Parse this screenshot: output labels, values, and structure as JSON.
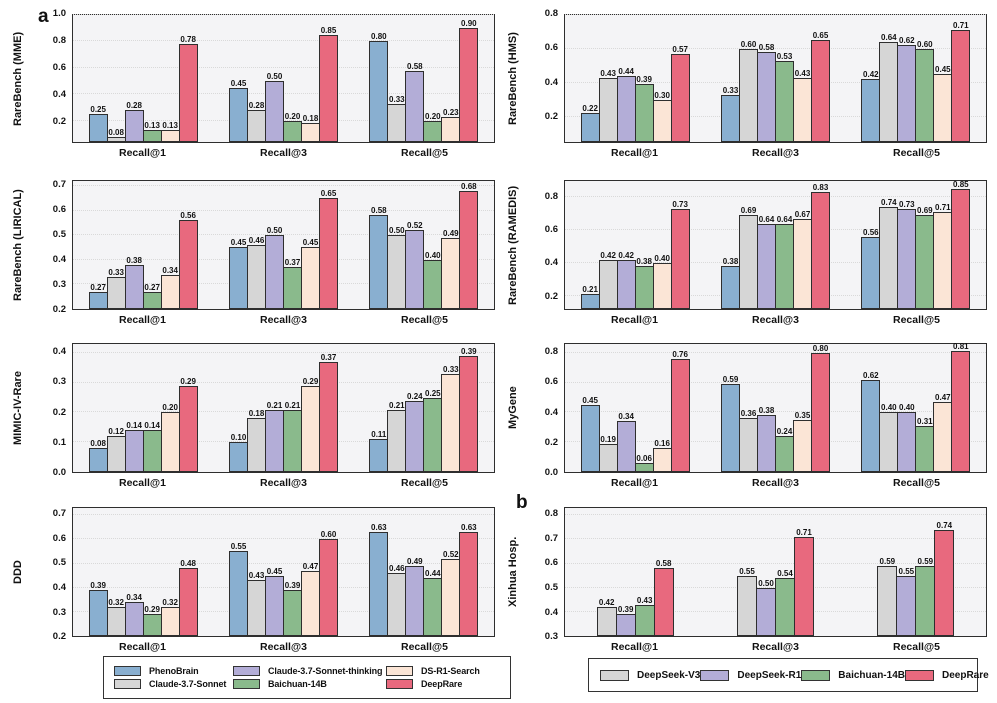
{
  "panels": {
    "a": "a",
    "b": "b"
  },
  "palettes": {
    "a": [
      "#89AFD0",
      "#D6D6D6",
      "#B3ADD7",
      "#8ABA8C",
      "#FBE5D6",
      "#E8697E"
    ],
    "b": [
      "#D6D6D6",
      "#B3ADD7",
      "#8ABA8C",
      "#E8697E"
    ]
  },
  "legend_a": {
    "items": [
      {
        "label": "PhenoBrain",
        "color": "#89AFD0"
      },
      {
        "label": "Claude-3.7-Sonnet-thinking",
        "color": "#B3ADD7"
      },
      {
        "label": "DS-R1-Search",
        "color": "#FBE5D6"
      },
      {
        "label": "Claude-3.7-Sonnet",
        "color": "#D6D6D6"
      },
      {
        "label": "Baichuan-14B",
        "color": "#8ABA8C"
      },
      {
        "label": "DeepRare",
        "color": "#E8697E"
      }
    ]
  },
  "legend_b": {
    "items": [
      {
        "label": "DeepSeek-V3",
        "color": "#D6D6D6"
      },
      {
        "label": "DeepSeek-R1",
        "color": "#B3ADD7"
      },
      {
        "label": "Baichuan-14B",
        "color": "#8ABA8C"
      },
      {
        "label": "DeepRare",
        "color": "#E8697E"
      }
    ]
  },
  "chart_data": [
    {
      "type": "bar",
      "panel": "a",
      "ylabel": "RareBench (MME)",
      "palette": "a",
      "ylim": [
        0.04,
        1.0
      ],
      "yticks": [
        "0.2",
        "0.4",
        "0.6",
        "0.8",
        "1.0"
      ],
      "grid": true,
      "categories": [
        "Recall@1",
        "Recall@3",
        "Recall@5"
      ],
      "series": [
        {
          "name": "PhenoBrain",
          "values": [
            "0.25",
            "0.45",
            "0.80"
          ]
        },
        {
          "name": "Claude-3.7-Sonnet",
          "values": [
            "0.08",
            "0.28",
            "0.33"
          ]
        },
        {
          "name": "Claude-3.7-Sonnet-thinking",
          "values": [
            "0.28",
            "0.50",
            "0.58"
          ]
        },
        {
          "name": "Baichuan-14B",
          "values": [
            "0.13",
            "0.20",
            "0.20"
          ]
        },
        {
          "name": "DS-R1-Search",
          "values": [
            "0.13",
            "0.18",
            "0.23"
          ]
        },
        {
          "name": "DeepRare",
          "values": [
            "0.78",
            "0.85",
            "0.90"
          ]
        }
      ]
    },
    {
      "type": "bar",
      "panel": "a",
      "ylabel": "RareBench (HMS)",
      "palette": "a",
      "ylim": [
        0.05,
        0.8
      ],
      "yticks": [
        "0.2",
        "0.4",
        "0.6",
        "0.8"
      ],
      "grid": true,
      "categories": [
        "Recall@1",
        "Recall@3",
        "Recall@5"
      ],
      "series": [
        {
          "name": "PhenoBrain",
          "values": [
            "0.22",
            "0.33",
            "0.42"
          ]
        },
        {
          "name": "Claude-3.7-Sonnet",
          "values": [
            "0.43",
            "0.60",
            "0.64"
          ]
        },
        {
          "name": "Claude-3.7-Sonnet-thinking",
          "values": [
            "0.44",
            "0.58",
            "0.62"
          ]
        },
        {
          "name": "Baichuan-14B",
          "values": [
            "0.39",
            "0.53",
            "0.60"
          ]
        },
        {
          "name": "DS-R1-Search",
          "values": [
            "0.30",
            "0.43",
            "0.45"
          ]
        },
        {
          "name": "DeepRare",
          "values": [
            "0.57",
            "0.65",
            "0.71"
          ]
        }
      ]
    },
    {
      "type": "bar",
      "panel": "a",
      "ylabel": "RareBench (LIRICAL)",
      "palette": "a",
      "ylim": [
        0.2,
        0.72
      ],
      "yticks": [
        "0.2",
        "0.3",
        "0.4",
        "0.5",
        "0.6",
        "0.7"
      ],
      "grid": true,
      "categories": [
        "Recall@1",
        "Recall@3",
        "Recall@5"
      ],
      "series": [
        {
          "name": "PhenoBrain",
          "values": [
            "0.27",
            "0.45",
            "0.58"
          ]
        },
        {
          "name": "Claude-3.7-Sonnet",
          "values": [
            "0.33",
            "0.46",
            "0.50"
          ]
        },
        {
          "name": "Claude-3.7-Sonnet-thinking",
          "values": [
            "0.38",
            "0.50",
            "0.52"
          ]
        },
        {
          "name": "Baichuan-14B",
          "values": [
            "0.27",
            "0.37",
            "0.40"
          ]
        },
        {
          "name": "DS-R1-Search",
          "values": [
            "0.34",
            "0.45",
            "0.49"
          ]
        },
        {
          "name": "DeepRare",
          "values": [
            "0.56",
            "0.65",
            "0.68"
          ]
        }
      ]
    },
    {
      "type": "bar",
      "panel": "a",
      "ylabel": "RareBench (RAMEDIS)",
      "palette": "a",
      "ylim": [
        0.12,
        0.9
      ],
      "yticks": [
        "0.2",
        "0.4",
        "0.6",
        "0.8"
      ],
      "grid": true,
      "categories": [
        "Recall@1",
        "Recall@3",
        "Recall@5"
      ],
      "series": [
        {
          "name": "PhenoBrain",
          "values": [
            "0.21",
            "0.38",
            "0.56"
          ]
        },
        {
          "name": "Claude-3.7-Sonnet",
          "values": [
            "0.42",
            "0.69",
            "0.74"
          ]
        },
        {
          "name": "Claude-3.7-Sonnet-thinking",
          "values": [
            "0.42",
            "0.64",
            "0.73"
          ]
        },
        {
          "name": "Baichuan-14B",
          "values": [
            "0.38",
            "0.64",
            "0.69"
          ]
        },
        {
          "name": "DS-R1-Search",
          "values": [
            "0.40",
            "0.67",
            "0.71"
          ]
        },
        {
          "name": "DeepRare",
          "values": [
            "0.73",
            "0.83",
            "0.85"
          ]
        }
      ]
    },
    {
      "type": "bar",
      "panel": "a",
      "ylabel": "MIMIC-IV-Rare",
      "palette": "a",
      "ylim": [
        0.0,
        0.43
      ],
      "yticks": [
        "0.0",
        "0.1",
        "0.2",
        "0.3",
        "0.4"
      ],
      "grid": true,
      "categories": [
        "Recall@1",
        "Recall@3",
        "Recall@5"
      ],
      "series": [
        {
          "name": "PhenoBrain",
          "values": [
            "0.08",
            "0.10",
            "0.11"
          ]
        },
        {
          "name": "Claude-3.7-Sonnet",
          "values": [
            "0.12",
            "0.18",
            "0.21"
          ]
        },
        {
          "name": "Claude-3.7-Sonnet-thinking",
          "values": [
            "0.14",
            "0.21",
            "0.24"
          ]
        },
        {
          "name": "Baichuan-14B",
          "values": [
            "0.14",
            "0.21",
            "0.25"
          ]
        },
        {
          "name": "DS-R1-Search",
          "values": [
            "0.20",
            "0.29",
            "0.33"
          ]
        },
        {
          "name": "DeepRare",
          "values": [
            "0.29",
            "0.37",
            "0.39"
          ]
        }
      ]
    },
    {
      "type": "bar",
      "panel": "a",
      "ylabel": "MyGene",
      "palette": "a",
      "ylim": [
        0.0,
        0.86
      ],
      "yticks": [
        "0.0",
        "0.2",
        "0.4",
        "0.6",
        "0.8"
      ],
      "grid": true,
      "categories": [
        "Recall@1",
        "Recall@3",
        "Recall@5"
      ],
      "series": [
        {
          "name": "PhenoBrain",
          "values": [
            "0.45",
            "0.59",
            "0.62"
          ]
        },
        {
          "name": "Claude-3.7-Sonnet",
          "values": [
            "0.19",
            "0.36",
            "0.40"
          ]
        },
        {
          "name": "Claude-3.7-Sonnet-thinking",
          "values": [
            "0.34",
            "0.38",
            "0.40"
          ]
        },
        {
          "name": "Baichuan-14B",
          "values": [
            "0.06",
            "0.24",
            "0.31"
          ]
        },
        {
          "name": "DS-R1-Search",
          "values": [
            "0.16",
            "0.35",
            "0.47"
          ]
        },
        {
          "name": "DeepRare",
          "values": [
            "0.76",
            "0.80",
            "0.81"
          ]
        }
      ]
    },
    {
      "type": "bar",
      "panel": "a",
      "ylabel": "DDD",
      "palette": "a",
      "ylim": [
        0.2,
        0.73
      ],
      "yticks": [
        "0.2",
        "0.3",
        "0.4",
        "0.5",
        "0.6",
        "0.7"
      ],
      "grid": true,
      "categories": [
        "Recall@1",
        "Recall@3",
        "Recall@5"
      ],
      "series": [
        {
          "name": "PhenoBrain",
          "values": [
            "0.39",
            "0.55",
            "0.63"
          ]
        },
        {
          "name": "Claude-3.7-Sonnet",
          "values": [
            "0.32",
            "0.43",
            "0.46"
          ]
        },
        {
          "name": "Claude-3.7-Sonnet-thinking",
          "values": [
            "0.34",
            "0.45",
            "0.49"
          ]
        },
        {
          "name": "Baichuan-14B",
          "values": [
            "0.29",
            "0.39",
            "0.44"
          ]
        },
        {
          "name": "DS-R1-Search",
          "values": [
            "0.32",
            "0.47",
            "0.52"
          ]
        },
        {
          "name": "DeepRare",
          "values": [
            "0.48",
            "0.60",
            "0.63"
          ]
        }
      ]
    },
    {
      "type": "bar",
      "panel": "b",
      "ylabel": "Xinhua Hosp.",
      "palette": "b",
      "ylim": [
        0.3,
        0.83
      ],
      "yticks": [
        "0.3",
        "0.4",
        "0.5",
        "0.6",
        "0.7",
        "0.8"
      ],
      "grid": true,
      "categories": [
        "Recall@1",
        "Recall@3",
        "Recall@5"
      ],
      "series": [
        {
          "name": "DeepSeek-V3",
          "values": [
            "0.42",
            "0.55",
            "0.59"
          ]
        },
        {
          "name": "DeepSeek-R1",
          "values": [
            "0.39",
            "0.50",
            "0.55"
          ]
        },
        {
          "name": "Baichuan-14B",
          "values": [
            "0.43",
            "0.54",
            "0.59"
          ]
        },
        {
          "name": "DeepRare",
          "values": [
            "0.58",
            "0.71",
            "0.74"
          ]
        }
      ]
    }
  ]
}
